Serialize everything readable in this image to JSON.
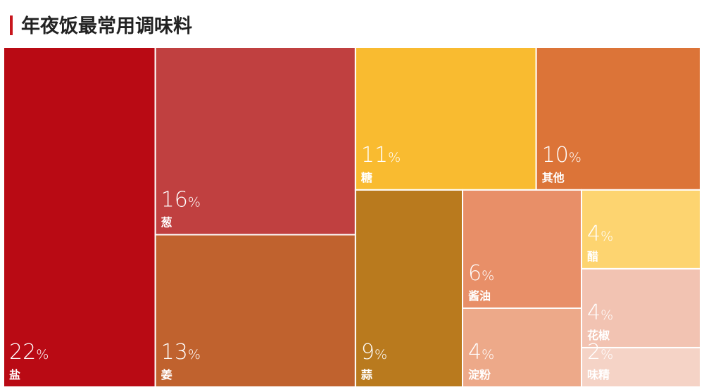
{
  "chart_data": {
    "type": "treemap",
    "title": "年夜饭最常用调味料",
    "categories": [
      "盐",
      "葱",
      "姜",
      "糖",
      "其他",
      "蒜",
      "酱油",
      "淀粉",
      "醋",
      "花椒",
      "味精"
    ],
    "values": [
      22,
      16,
      13,
      11,
      10,
      9,
      6,
      4,
      4,
      4,
      2
    ],
    "value_labels": [
      "22%",
      "16%",
      "13%",
      "11%",
      "10%",
      "9%",
      "6%",
      "4%",
      "4%",
      "4%",
      "2%"
    ],
    "colors": [
      "#b90a14",
      "#c04040",
      "#c0622e",
      "#f9bb30",
      "#dc7438",
      "#b97a1e",
      "#e88f68",
      "#eda989",
      "#fdd470",
      "#f2c3b2",
      "#f5d3c6"
    ]
  }
}
